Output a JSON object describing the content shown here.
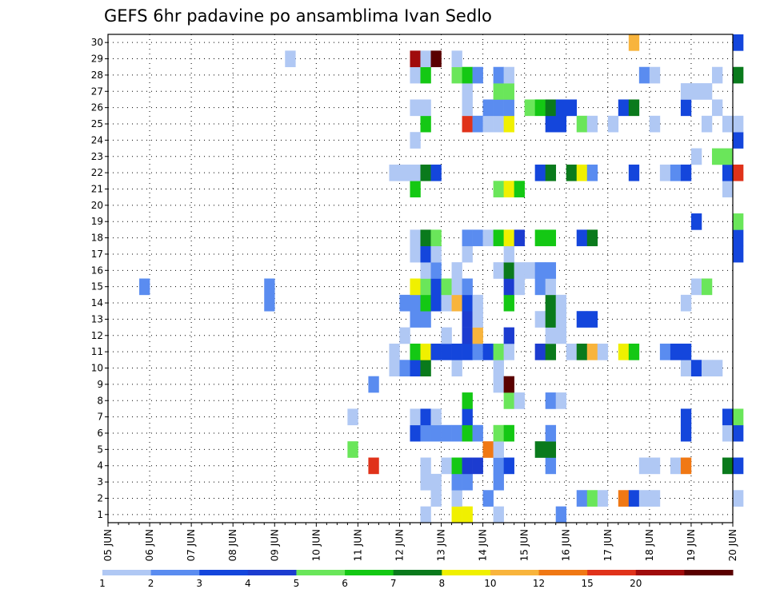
{
  "chart_data": {
    "type": "heatmap",
    "title": "GEFS 6hr padavine po ansamblima Ivan Sedlo",
    "xlabel": "",
    "ylabel": "",
    "x_range": [
      "05 JUN 00Z",
      "20 JUN 00Z"
    ],
    "x_step": "6hr",
    "x_tick_labels": [
      "05 JUN",
      "06 JUN",
      "07 JUN",
      "08 JUN",
      "09 JUN",
      "10 JUN",
      "11 JUN",
      "12 JUN",
      "13 JUN",
      "14 JUN",
      "15 JUN",
      "16 JUN",
      "17 JUN",
      "18 JUN",
      "19 JUN",
      "20 JUN"
    ],
    "y_tick_labels": [
      "1",
      "2",
      "3",
      "4",
      "5",
      "6",
      "7",
      "8",
      "9",
      "10",
      "11",
      "12",
      "13",
      "14",
      "15",
      "16",
      "17",
      "18",
      "19",
      "20",
      "21",
      "22",
      "23",
      "24",
      "25",
      "26",
      "27",
      "28",
      "29",
      "30"
    ],
    "ylim": [
      0,
      30
    ],
    "grid": true,
    "colorbar": {
      "position": "bottom",
      "tick_labels": [
        "1",
        "2",
        "3",
        "4",
        "5",
        "6",
        "7",
        "8",
        "10",
        "12",
        "15",
        "20"
      ],
      "colors": [
        "#b0c8f4",
        "#5a8cf0",
        "#1446dc",
        "#1c3cd0",
        "#6ae65a",
        "#14c814",
        "#0a7a1c",
        "#f0f000",
        "#f8b43c",
        "#f07814",
        "#e0321a",
        "#a00c0c",
        "#5a0000"
      ]
    },
    "cells": [
      [
        "06-03",
        15,
        2
      ],
      [
        "06-15",
        15,
        2
      ],
      [
        "06-15",
        14,
        2
      ],
      [
        "06-17",
        29,
        1
      ],
      [
        "06-23",
        5,
        5
      ],
      [
        "06-23",
        7,
        1
      ],
      [
        "06-25",
        4,
        11
      ],
      [
        "06-25",
        9,
        2
      ],
      [
        "06-27",
        10,
        1
      ],
      [
        "06-27",
        11,
        1
      ],
      [
        "06-27",
        22,
        1
      ],
      [
        "06-28",
        12,
        1
      ],
      [
        "06-28",
        22,
        1
      ],
      [
        "06-28",
        10,
        2
      ],
      [
        "06-28",
        14,
        2
      ],
      [
        "06-29",
        6,
        3
      ],
      [
        "06-29",
        7,
        1
      ],
      [
        "06-29",
        10,
        3
      ],
      [
        "06-29",
        11,
        6
      ],
      [
        "06-29",
        13,
        2
      ],
      [
        "06-29",
        14,
        2
      ],
      [
        "06-29",
        15,
        8
      ],
      [
        "06-29",
        17,
        1
      ],
      [
        "06-29",
        18,
        1
      ],
      [
        "06-29",
        21,
        6
      ],
      [
        "06-29",
        22,
        1
      ],
      [
        "06-29",
        24,
        1
      ],
      [
        "06-29",
        26,
        1
      ],
      [
        "06-29",
        28,
        1
      ],
      [
        "06-29",
        29,
        12
      ],
      [
        "06-30",
        1,
        1
      ],
      [
        "06-30",
        3,
        1
      ],
      [
        "06-30",
        4,
        1
      ],
      [
        "06-30",
        6,
        2
      ],
      [
        "06-30",
        7,
        3
      ],
      [
        "06-30",
        10,
        7
      ],
      [
        "06-30",
        11,
        8
      ],
      [
        "06-30",
        13,
        2
      ],
      [
        "06-30",
        14,
        6
      ],
      [
        "06-30",
        15,
        5
      ],
      [
        "06-30",
        16,
        1
      ],
      [
        "06-30",
        17,
        3
      ],
      [
        "06-30",
        18,
        7
      ],
      [
        "06-30",
        22,
        7
      ],
      [
        "06-30",
        25,
        6
      ],
      [
        "06-30",
        26,
        1
      ],
      [
        "06-30",
        28,
        6
      ],
      [
        "06-30",
        29,
        1
      ],
      [
        "07-01",
        2,
        1
      ],
      [
        "07-01",
        3,
        1
      ],
      [
        "07-01",
        6,
        2
      ],
      [
        "07-01",
        7,
        1
      ],
      [
        "07-01",
        11,
        3
      ],
      [
        "07-01",
        14,
        3
      ],
      [
        "07-01",
        15,
        3
      ],
      [
        "07-01",
        16,
        2
      ],
      [
        "07-01",
        17,
        1
      ],
      [
        "07-01",
        18,
        5
      ],
      [
        "07-01",
        22,
        3
      ],
      [
        "07-01",
        29,
        13
      ],
      [
        "07-02",
        4,
        1
      ],
      [
        "07-02",
        6,
        2
      ],
      [
        "07-02",
        11,
        3
      ],
      [
        "07-02",
        12,
        1
      ],
      [
        "07-02",
        14,
        1
      ],
      [
        "07-02",
        15,
        5
      ],
      [
        "07-03",
        1,
        8
      ],
      [
        "07-03",
        2,
        1
      ],
      [
        "07-03",
        3,
        2
      ],
      [
        "07-03",
        4,
        6
      ],
      [
        "07-03",
        6,
        2
      ],
      [
        "07-03",
        10,
        1
      ],
      [
        "07-03",
        11,
        3
      ],
      [
        "07-03",
        14,
        9
      ],
      [
        "07-03",
        15,
        1
      ],
      [
        "07-03",
        16,
        1
      ],
      [
        "07-03",
        28,
        5
      ],
      [
        "07-03",
        29,
        1
      ],
      [
        "07-04",
        1,
        8
      ],
      [
        "07-04",
        3,
        2
      ],
      [
        "07-04",
        4,
        4
      ],
      [
        "07-04",
        6,
        6
      ],
      [
        "07-04",
        7,
        3
      ],
      [
        "07-04",
        8,
        6
      ],
      [
        "07-04",
        11,
        3
      ],
      [
        "07-04",
        12,
        4
      ],
      [
        "07-04",
        13,
        4
      ],
      [
        "07-04",
        14,
        3
      ],
      [
        "07-04",
        15,
        2
      ],
      [
        "07-04",
        17,
        1
      ],
      [
        "07-04",
        18,
        2
      ],
      [
        "07-04",
        25,
        11
      ],
      [
        "07-04",
        26,
        1
      ],
      [
        "07-04",
        27,
        1
      ],
      [
        "07-04",
        28,
        6
      ],
      [
        "07-05",
        4,
        4
      ],
      [
        "07-05",
        6,
        2
      ],
      [
        "07-05",
        11,
        2
      ],
      [
        "07-05",
        12,
        9
      ],
      [
        "07-05",
        13,
        1
      ],
      [
        "07-05",
        14,
        1
      ],
      [
        "07-05",
        18,
        2
      ],
      [
        "07-05",
        25,
        2
      ],
      [
        "07-05",
        28,
        2
      ],
      [
        "07-06",
        2,
        2
      ],
      [
        "07-06",
        5,
        10
      ],
      [
        "07-06",
        11,
        3
      ],
      [
        "07-06",
        18,
        1
      ],
      [
        "07-06",
        25,
        1
      ],
      [
        "07-06",
        26,
        2
      ],
      [
        "07-07",
        1,
        1
      ],
      [
        "07-07",
        3,
        2
      ],
      [
        "07-07",
        4,
        2
      ],
      [
        "07-07",
        5,
        1
      ],
      [
        "07-07",
        6,
        5
      ],
      [
        "07-07",
        9,
        1
      ],
      [
        "07-07",
        10,
        1
      ],
      [
        "07-07",
        11,
        5
      ],
      [
        "07-07",
        16,
        1
      ],
      [
        "07-07",
        18,
        6
      ],
      [
        "07-07",
        21,
        5
      ],
      [
        "07-07",
        25,
        1
      ],
      [
        "07-07",
        26,
        2
      ],
      [
        "07-07",
        27,
        5
      ],
      [
        "07-07",
        28,
        2
      ],
      [
        "07-08",
        4,
        3
      ],
      [
        "07-08",
        6,
        6
      ],
      [
        "07-08",
        8,
        5
      ],
      [
        "07-08",
        9,
        13
      ],
      [
        "07-08",
        11,
        1
      ],
      [
        "07-08",
        12,
        4
      ],
      [
        "07-08",
        14,
        6
      ],
      [
        "07-08",
        15,
        4
      ],
      [
        "07-08",
        16,
        7
      ],
      [
        "07-08",
        17,
        1
      ],
      [
        "07-08",
        18,
        8
      ],
      [
        "07-08",
        21,
        8
      ],
      [
        "07-08",
        25,
        8
      ],
      [
        "07-08",
        26,
        2
      ],
      [
        "07-08",
        27,
        5
      ],
      [
        "07-08",
        28,
        1
      ],
      [
        "07-09",
        8,
        1
      ],
      [
        "07-09",
        15,
        1
      ],
      [
        "07-09",
        16,
        1
      ],
      [
        "07-09",
        18,
        4
      ],
      [
        "07-09",
        21,
        6
      ],
      [
        "07-10",
        16,
        1
      ],
      [
        "07-10",
        26,
        5
      ],
      [
        "07-11",
        5,
        7
      ],
      [
        "07-11",
        11,
        4
      ],
      [
        "07-11",
        13,
        1
      ],
      [
        "07-11",
        15,
        2
      ],
      [
        "07-11",
        16,
        2
      ],
      [
        "07-11",
        18,
        6
      ],
      [
        "07-11",
        22,
        3
      ],
      [
        "07-11",
        26,
        6
      ],
      [
        "07-12",
        4,
        2
      ],
      [
        "07-12",
        5,
        7
      ],
      [
        "07-12",
        6,
        2
      ],
      [
        "07-12",
        8,
        2
      ],
      [
        "07-12",
        11,
        7
      ],
      [
        "07-12",
        12,
        1
      ],
      [
        "07-12",
        13,
        7
      ],
      [
        "07-12",
        14,
        7
      ],
      [
        "07-12",
        15,
        1
      ],
      [
        "07-12",
        16,
        2
      ],
      [
        "07-12",
        18,
        6
      ],
      [
        "07-12",
        22,
        7
      ],
      [
        "07-12",
        25,
        3
      ],
      [
        "07-12",
        26,
        7
      ],
      [
        "07-13",
        1,
        2
      ],
      [
        "07-13",
        8,
        1
      ],
      [
        "07-13",
        12,
        1
      ],
      [
        "07-13",
        13,
        1
      ],
      [
        "07-13",
        14,
        1
      ],
      [
        "07-13",
        25,
        3
      ],
      [
        "07-13",
        26,
        3
      ],
      [
        "07-14",
        11,
        1
      ],
      [
        "07-14",
        22,
        7
      ],
      [
        "07-14",
        26,
        3
      ],
      [
        "07-15",
        2,
        2
      ],
      [
        "07-15",
        11,
        7
      ],
      [
        "07-15",
        13,
        3
      ],
      [
        "07-15",
        18,
        3
      ],
      [
        "07-15",
        22,
        8
      ],
      [
        "07-15",
        25,
        5
      ],
      [
        "07-16",
        2,
        5
      ],
      [
        "07-16",
        11,
        9
      ],
      [
        "07-16",
        13,
        3
      ],
      [
        "07-16",
        18,
        7
      ],
      [
        "07-16",
        22,
        2
      ],
      [
        "07-16",
        25,
        1
      ],
      [
        "07-17",
        2,
        1
      ],
      [
        "07-17",
        11,
        1
      ],
      [
        "07-18",
        25,
        1
      ],
      [
        "07-19",
        2,
        10
      ],
      [
        "07-19",
        11,
        8
      ],
      [
        "07-19",
        26,
        3
      ],
      [
        "07-20",
        2,
        3
      ],
      [
        "07-20",
        11,
        6
      ],
      [
        "07-20",
        22,
        3
      ],
      [
        "07-20",
        26,
        7
      ],
      [
        "07-20",
        30,
        9
      ],
      [
        "07-21",
        2,
        1
      ],
      [
        "07-21",
        4,
        1
      ],
      [
        "07-21",
        28,
        2
      ],
      [
        "07-22",
        2,
        1
      ],
      [
        "07-22",
        4,
        1
      ],
      [
        "07-22",
        25,
        1
      ],
      [
        "07-22",
        28,
        1
      ],
      [
        "07-23",
        11,
        2
      ],
      [
        "07-23",
        22,
        1
      ],
      [
        "07-24",
        4,
        1
      ],
      [
        "07-24",
        11,
        3
      ],
      [
        "07-24",
        22,
        2
      ],
      [
        "07-25",
        4,
        10
      ],
      [
        "07-25",
        6,
        3
      ],
      [
        "07-25",
        7,
        3
      ],
      [
        "07-25",
        10,
        1
      ],
      [
        "07-25",
        11,
        3
      ],
      [
        "07-25",
        14,
        1
      ],
      [
        "07-25",
        22,
        3
      ],
      [
        "07-25",
        26,
        3
      ],
      [
        "07-25",
        27,
        1
      ],
      [
        "07-26",
        10,
        3
      ],
      [
        "07-26",
        15,
        1
      ],
      [
        "07-26",
        19,
        3
      ],
      [
        "07-26",
        23,
        1
      ],
      [
        "07-26",
        27,
        1
      ],
      [
        "07-27",
        10,
        1
      ],
      [
        "07-27",
        15,
        5
      ],
      [
        "07-27",
        25,
        1
      ],
      [
        "07-27",
        27,
        1
      ],
      [
        "07-28",
        10,
        1
      ],
      [
        "07-28",
        23,
        5
      ],
      [
        "07-28",
        26,
        1
      ],
      [
        "07-28",
        28,
        1
      ],
      [
        "07-29",
        4,
        7
      ],
      [
        "07-29",
        6,
        1
      ],
      [
        "07-29",
        7,
        3
      ],
      [
        "07-29",
        21,
        1
      ],
      [
        "07-29",
        22,
        3
      ],
      [
        "07-29",
        23,
        5
      ],
      [
        "07-29",
        25,
        1
      ],
      [
        "07-30",
        2,
        1
      ],
      [
        "07-30",
        4,
        3
      ],
      [
        "07-30",
        6,
        3
      ],
      [
        "07-30",
        7,
        5
      ],
      [
        "07-30",
        17,
        3
      ],
      [
        "07-30",
        18,
        3
      ],
      [
        "07-30",
        19,
        5
      ],
      [
        "07-30",
        22,
        11
      ],
      [
        "07-30",
        24,
        3
      ],
      [
        "07-30",
        25,
        1
      ],
      [
        "07-30",
        28,
        7
      ],
      [
        "07-30",
        30,
        3
      ]
    ]
  }
}
